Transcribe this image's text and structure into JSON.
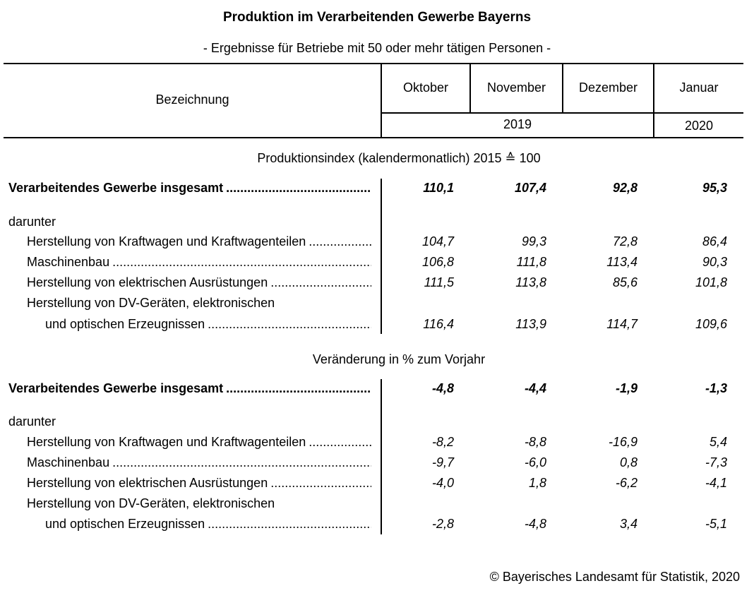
{
  "title": "Produktion im Verarbeitenden Gewerbe Bayerns",
  "subtitle": "- Ergebnisse für Betriebe mit 50 oder mehr tätigen Personen -",
  "header": {
    "label_col": "Bezeichnung",
    "months": [
      "Oktober",
      "November",
      "Dezember",
      "Januar"
    ],
    "years": [
      "2019",
      "2020"
    ]
  },
  "sections": [
    {
      "heading": "Produktionsindex (kalendermonatlich) 2015 ≙ 100",
      "rows": [
        {
          "label": "Verarbeitendes Gewerbe insgesamt",
          "bold": true,
          "values": [
            "110,1",
            "107,4",
            "92,8",
            "95,3"
          ]
        },
        {
          "label": "darunter",
          "values": []
        },
        {
          "label": "Herstellung von Kraftwagen und Kraftwagenteilen",
          "indent": 1,
          "values": [
            "104,7",
            "99,3",
            "72,8",
            "86,4"
          ]
        },
        {
          "label": "Maschinenbau",
          "indent": 1,
          "values": [
            "106,8",
            "111,8",
            "113,4",
            "90,3"
          ]
        },
        {
          "label": "Herstellung von elektrischen Ausrüstungen",
          "indent": 1,
          "values": [
            "111,5",
            "113,8",
            "85,6",
            "101,8"
          ]
        },
        {
          "label": "Herstellung von DV-Geräten, elektronischen",
          "indent": 1,
          "nodots": true,
          "values": []
        },
        {
          "label": "und optischen Erzeugnissen",
          "indent": 2,
          "values": [
            "116,4",
            "113,9",
            "114,7",
            "109,6"
          ]
        }
      ]
    },
    {
      "heading": "Veränderung in % zum Vorjahr",
      "rows": [
        {
          "label": "Verarbeitendes Gewerbe insgesamt",
          "bold": true,
          "values": [
            "-4,8",
            "-4,4",
            "-1,9",
            "-1,3"
          ]
        },
        {
          "label": "darunter",
          "values": []
        },
        {
          "label": "Herstellung von Kraftwagen und Kraftwagenteilen",
          "indent": 1,
          "values": [
            "-8,2",
            "-8,8",
            "-16,9",
            "5,4"
          ]
        },
        {
          "label": "Maschinenbau",
          "indent": 1,
          "values": [
            "-9,7",
            "-6,0",
            "0,8",
            "-7,3"
          ]
        },
        {
          "label": "Herstellung von elektrischen Ausrüstungen",
          "indent": 1,
          "values": [
            "-4,0",
            "1,8",
            "-6,2",
            "-4,1"
          ]
        },
        {
          "label": "Herstellung von DV-Geräten, elektronischen",
          "indent": 1,
          "nodots": true,
          "values": []
        },
        {
          "label": "und optischen Erzeugnissen",
          "indent": 2,
          "values": [
            "-2,8",
            "-4,8",
            "3,4",
            "-5,1"
          ]
        }
      ]
    }
  ],
  "footer": "© Bayerisches Landesamt für Statistik, 2020"
}
